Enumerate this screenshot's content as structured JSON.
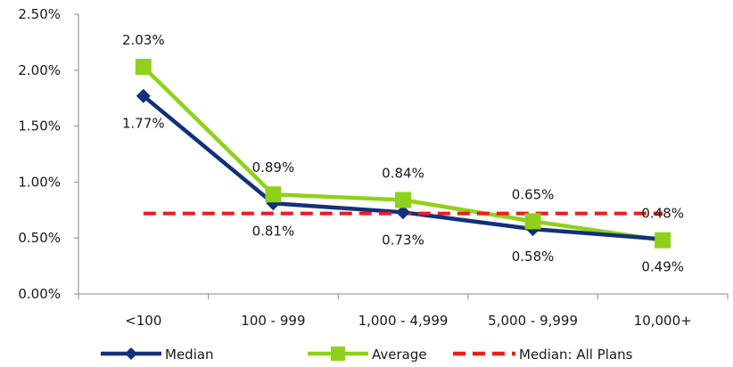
{
  "chart_data": {
    "type": "line",
    "categories": [
      "<100",
      "100 - 999",
      "1,000 - 4,999",
      "5,000 - 9,999",
      "10,000+"
    ],
    "ylim": [
      0,
      2.5
    ],
    "yticks": [
      0,
      0.5,
      1.0,
      1.5,
      2.0,
      2.5
    ],
    "ytick_labels": [
      "0.00%",
      "0.50%",
      "1.00%",
      "1.50%",
      "2.00%",
      "2.50%"
    ],
    "grid": false,
    "legend_position": "bottom",
    "series": [
      {
        "name": "Median",
        "values": [
          1.77,
          0.81,
          0.73,
          0.58,
          0.49
        ],
        "labels": [
          "1.77%",
          "0.81%",
          "0.73%",
          "0.58%",
          "0.49%"
        ],
        "color": "#13307a",
        "marker": "diamond",
        "style": "solid"
      },
      {
        "name": "Average",
        "values": [
          2.03,
          0.89,
          0.84,
          0.65,
          0.48
        ],
        "labels": [
          "2.03%",
          "0.89%",
          "0.84%",
          "0.65%",
          "0.48%"
        ],
        "color": "#8fd11a",
        "marker": "square",
        "style": "solid"
      },
      {
        "name": "Median: All Plans",
        "values": [
          0.72,
          0.72,
          0.72,
          0.72,
          0.72
        ],
        "labels": [],
        "color": "#ee1c1c",
        "marker": "none",
        "style": "dashed"
      }
    ]
  }
}
